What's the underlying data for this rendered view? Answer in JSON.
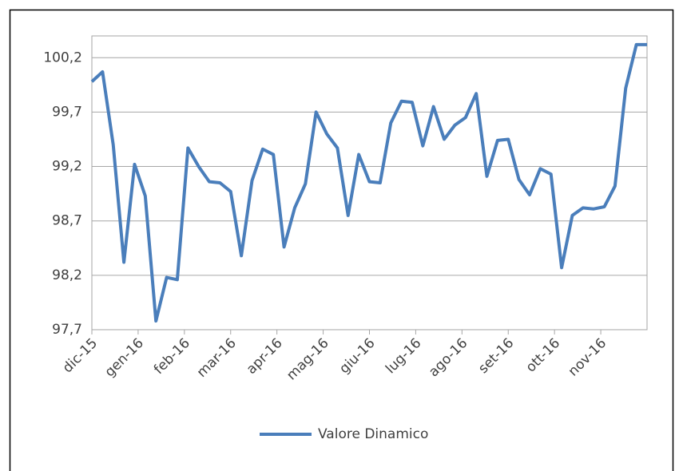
{
  "chart_data": {
    "type": "line",
    "x": [
      0,
      1,
      2,
      3,
      4,
      5,
      6,
      7,
      8,
      9,
      10,
      11,
      12,
      13,
      14,
      15,
      16,
      17,
      18,
      19,
      20,
      21,
      22,
      23,
      24,
      25,
      26,
      27,
      28,
      29,
      30,
      31,
      32,
      33,
      34,
      35,
      36,
      37,
      38,
      39,
      40,
      41,
      42,
      43,
      44,
      45,
      46,
      47,
      48,
      49,
      50,
      51,
      52
    ],
    "series": [
      {
        "name": "Valore Dinamico",
        "color": "#4a7ebb",
        "values": [
          99.98,
          100.07,
          99.4,
          98.32,
          99.22,
          98.93,
          97.78,
          98.18,
          98.16,
          99.37,
          99.2,
          99.06,
          99.05,
          98.97,
          98.38,
          99.07,
          99.36,
          99.31,
          98.46,
          98.82,
          99.04,
          99.7,
          99.5,
          99.37,
          98.75,
          99.31,
          99.06,
          99.05,
          99.6,
          99.8,
          99.79,
          99.39,
          99.75,
          99.45,
          99.58,
          99.65,
          99.87,
          99.11,
          99.44,
          99.45,
          99.08,
          98.94,
          99.18,
          99.13,
          98.27,
          98.75,
          98.82,
          98.81,
          98.83,
          99.02,
          99.92,
          100.32,
          100.32
        ]
      }
    ],
    "xlim": [
      0,
      52
    ],
    "xticks": [
      {
        "value": 0,
        "label": "dic-15"
      },
      {
        "value": 4.333,
        "label": "gen-16"
      },
      {
        "value": 8.667,
        "label": "feb-16"
      },
      {
        "value": 13,
        "label": "mar-16"
      },
      {
        "value": 17.333,
        "label": "apr-16"
      },
      {
        "value": 21.667,
        "label": "mag-16"
      },
      {
        "value": 26,
        "label": "giu-16"
      },
      {
        "value": 30.333,
        "label": "lug-16"
      },
      {
        "value": 34.667,
        "label": "ago-16"
      },
      {
        "value": 39,
        "label": "set-16"
      },
      {
        "value": 43.333,
        "label": "ott-16"
      },
      {
        "value": 47.667,
        "label": "nov-16"
      }
    ],
    "ylim": [
      97.7,
      100.4
    ],
    "yticks": [
      {
        "value": 97.7,
        "label": "97,7"
      },
      {
        "value": 98.2,
        "label": "98,2"
      },
      {
        "value": 98.7,
        "label": "98,7"
      },
      {
        "value": 99.2,
        "label": "99,2"
      },
      {
        "value": 99.7,
        "label": "99,7"
      },
      {
        "value": 100.2,
        "label": "100,2"
      }
    ],
    "grid": true,
    "legend": "bottom"
  }
}
